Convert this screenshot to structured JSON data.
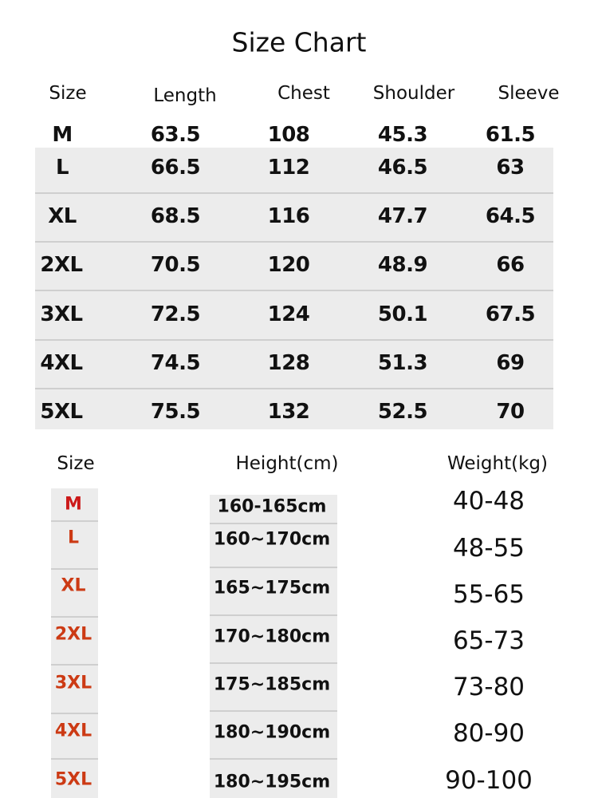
{
  "title": "Size Chart",
  "measurements": {
    "headers": [
      "Size",
      "Length",
      "Chest",
      "Shoulder",
      "Sleeve"
    ],
    "rows": [
      [
        "M",
        "63.5",
        "108",
        "45.3",
        "61.5"
      ],
      [
        "L",
        "66.5",
        "112",
        "46.5",
        "63"
      ],
      [
        "XL",
        "68.5",
        "116",
        "47.7",
        "64.5"
      ],
      [
        "2XL",
        "70.5",
        "120",
        "48.9",
        "66"
      ],
      [
        "3XL",
        "72.5",
        "124",
        "50.1",
        "67.5"
      ],
      [
        "4XL",
        "74.5",
        "128",
        "51.3",
        "69"
      ],
      [
        "5XL",
        "75.5",
        "132",
        "52.5",
        "70"
      ]
    ]
  },
  "fit": {
    "headers": [
      "Size",
      "Height(cm)",
      "Weight(kg)"
    ],
    "rows": [
      [
        "M",
        "160-165cm",
        "40-48"
      ],
      [
        "L",
        "160~170cm",
        "48-55"
      ],
      [
        "XL",
        "165~175cm",
        "55-65"
      ],
      [
        "2XL",
        "170~180cm",
        "65-73"
      ],
      [
        "3XL",
        "175~185cm",
        "73-80"
      ],
      [
        "4XL",
        "180~190cm",
        "80-90"
      ],
      [
        "5XL",
        "180~195cm",
        "90-100"
      ]
    ],
    "colors": {
      "size_m": "#cc1a1a",
      "size_other": "#cc3a14"
    }
  }
}
